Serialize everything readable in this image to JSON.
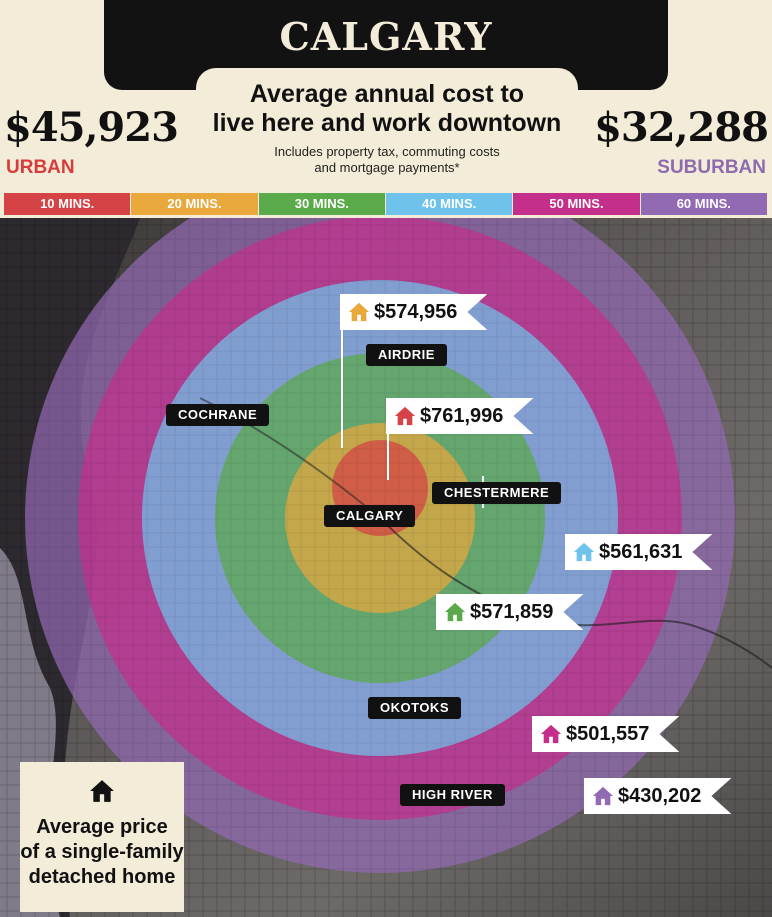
{
  "header": {
    "title": "CALGARY",
    "subtitle_line1": "Average annual cost to",
    "subtitle_line2": "live here and work downtown",
    "note_line1": "Includes property tax, commuting costs",
    "note_line2": "and mortgage payments*"
  },
  "costs": {
    "urban_value": "$45,923",
    "urban_label": "URBAN",
    "urban_color": "#d93b3b",
    "suburban_value": "$32,288",
    "suburban_label": "SUBURBAN",
    "suburban_color": "#8e6aae"
  },
  "bands": [
    {
      "label": "10 MINS.",
      "color": "#d64346"
    },
    {
      "label": "20 MINS.",
      "color": "#e8a83c"
    },
    {
      "label": "30 MINS.",
      "color": "#5aa94a"
    },
    {
      "label": "40 MINS.",
      "color": "#6fc3ea"
    },
    {
      "label": "50 MINS.",
      "color": "#c42f8c"
    },
    {
      "label": "60 MINS.",
      "color": "#9269b3"
    }
  ],
  "places": {
    "airdrie": "AIRDRIE",
    "cochrane": "COCHRANE",
    "chestermere": "CHESTERMERE",
    "calgary": "CALGARY",
    "okotoks": "OKOTOKS",
    "high_river": "HIGH RIVER"
  },
  "prices": [
    {
      "value": "$574,956",
      "icon": "house-icon",
      "color": "#e8a83c"
    },
    {
      "value": "$761,996",
      "icon": "house-icon",
      "color": "#d64346"
    },
    {
      "value": "$561,631",
      "icon": "house-icon",
      "color": "#6fc3ea"
    },
    {
      "value": "$571,859",
      "icon": "house-icon",
      "color": "#5aa94a"
    },
    {
      "value": "$501,557",
      "icon": "house-icon",
      "color": "#c42f8c"
    },
    {
      "value": "$430,202",
      "icon": "house-icon",
      "color": "#9269b3"
    }
  ],
  "legend": {
    "icon": "house-icon",
    "line1": "Average price",
    "line2": "of a single-family",
    "line3": "detached home"
  }
}
